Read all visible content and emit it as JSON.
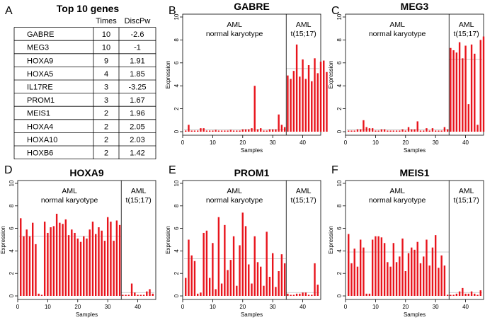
{
  "table": {
    "panel_label": "A",
    "title": "Top 10 genes",
    "headers": [
      "",
      "Times",
      "DiscPw"
    ],
    "rows": [
      [
        "GABRE",
        "10",
        "-2.6"
      ],
      [
        "MEG3",
        "10",
        "-1"
      ],
      [
        "HOXA9",
        "9",
        "1.91"
      ],
      [
        "HOXA5",
        "4",
        "1.85"
      ],
      [
        "IL17RE",
        "3",
        "-3.25"
      ],
      [
        "PROM1",
        "3",
        "1.67"
      ],
      [
        "MEIS1",
        "2",
        "1.96"
      ],
      [
        "HOXA4",
        "2",
        "2.05"
      ],
      [
        "HOXA10",
        "2",
        "2.03"
      ],
      [
        "HOXB6",
        "2",
        "1.42"
      ]
    ]
  },
  "chart_data": [
    {
      "type": "bar",
      "panel_label": "B",
      "title": "GABRE",
      "xlabel": "Samples",
      "ylabel": "Expression",
      "xlim": [
        0,
        46
      ],
      "ylim": [
        0,
        10
      ],
      "xticks": [
        0,
        10,
        20,
        30,
        40
      ],
      "yticks": [
        0,
        2,
        4,
        6,
        8,
        10
      ],
      "divider_x": 34.5,
      "group_labels": {
        "left": [
          "AML",
          "normal karyotype"
        ],
        "right": [
          "AML",
          "t(15;17)"
        ]
      },
      "means": {
        "left": 0.2,
        "right": 5.5
      },
      "values": [
        0.1,
        0.6,
        0.1,
        0.1,
        0.1,
        0.3,
        0.3,
        0.1,
        0.1,
        0.1,
        0.15,
        0.1,
        0.1,
        0.1,
        0.1,
        0.15,
        0.1,
        0.1,
        0.1,
        0.2,
        0.2,
        0.2,
        0.3,
        4.0,
        0.2,
        0.3,
        0.1,
        0.1,
        0.2,
        0.2,
        0.2,
        1.5,
        0.6,
        0.4,
        4.9,
        4.6,
        5.3,
        7.6,
        4.8,
        6.3,
        4.6,
        5.8,
        4.4,
        6.4,
        5.1,
        6.1,
        6.2,
        5.2
      ]
    },
    {
      "type": "bar",
      "panel_label": "C",
      "title": "MEG3",
      "xlabel": "Samples",
      "ylabel": "Expression",
      "xlim": [
        0,
        46
      ],
      "ylim": [
        0,
        10
      ],
      "xticks": [
        0,
        10,
        20,
        30,
        40
      ],
      "yticks": [
        0,
        2,
        4,
        6,
        8,
        10
      ],
      "divider_x": 34.5,
      "group_labels": {
        "left": [
          "AML",
          "normal karyotype"
        ],
        "right": [
          "AML",
          "t(15;17)"
        ]
      },
      "means": {
        "left": 0.2,
        "right": 6.3
      },
      "values": [
        0.1,
        0.1,
        0.1,
        0.2,
        0.2,
        1.0,
        0.4,
        0.3,
        0.3,
        0.1,
        0.1,
        0.2,
        0.2,
        0.1,
        0.1,
        0.1,
        0.1,
        0.1,
        0.2,
        0.1,
        0.4,
        0.2,
        0.2,
        0.9,
        0.1,
        0.1,
        0.3,
        0.1,
        0.3,
        0.1,
        0.1,
        0.1,
        0.4,
        0.2,
        7.3,
        7.1,
        6.9,
        7.8,
        6.4,
        7.5,
        2.4,
        7.6,
        6.8,
        0.6,
        8.0,
        8.3,
        8.6
      ]
    },
    {
      "type": "bar",
      "panel_label": "D",
      "title": "HOXA9",
      "xlabel": "Samples",
      "ylabel": "Expression",
      "xlim": [
        0,
        46
      ],
      "ylim": [
        0,
        10
      ],
      "xticks": [
        0,
        10,
        20,
        30,
        40
      ],
      "yticks": [
        0,
        2,
        4,
        6,
        8,
        10
      ],
      "divider_x": 34.5,
      "group_labels": {
        "left": [
          "AML",
          "normal karyotype"
        ],
        "right": [
          "AML",
          "t(15;17)"
        ]
      },
      "means": {
        "left": 5.3,
        "right": 0.3
      },
      "values": [
        6.9,
        5.3,
        5.9,
        5.3,
        6.5,
        4.6,
        0.2,
        0.1,
        6.6,
        5.6,
        6.1,
        6.2,
        7.3,
        6.5,
        6.4,
        6.8,
        5.4,
        5.9,
        5.6,
        5.1,
        4.8,
        5.3,
        5.1,
        5.9,
        6.6,
        5.5,
        6.1,
        5.8,
        4.9,
        7.0,
        6.6,
        4.9,
        6.7,
        6.3,
        0.1,
        0.1,
        0.1,
        1.1,
        0.3,
        0.1,
        0.1,
        0.1,
        0.4,
        0.6,
        0.2
      ]
    },
    {
      "type": "bar",
      "panel_label": "E",
      "title": "PROM1",
      "xlabel": "Samples",
      "ylabel": "Expression",
      "xlim": [
        0,
        46
      ],
      "ylim": [
        0,
        10
      ],
      "xticks": [
        0,
        10,
        20,
        30,
        40
      ],
      "yticks": [
        0,
        2,
        4,
        6,
        8,
        10
      ],
      "divider_x": 34.5,
      "group_labels": {
        "left": [
          "AML",
          "normal karyotype"
        ],
        "right": [
          "AML",
          "t(15;17)"
        ]
      },
      "means": {
        "left": 3.3,
        "right": 0.3
      },
      "values": [
        1.6,
        5.0,
        3.6,
        3.1,
        0.2,
        0.3,
        5.6,
        5.8,
        1.6,
        4.7,
        0.6,
        7.0,
        1.1,
        6.3,
        2.3,
        3.2,
        5.3,
        0.9,
        4.5,
        7.4,
        6.2,
        2.8,
        1.1,
        5.3,
        3.0,
        2.6,
        0.9,
        5.7,
        1.7,
        3.8,
        0.8,
        2.2,
        3.7,
        2.9,
        0.2,
        0.1,
        0.1,
        0.2,
        0.2,
        0.3,
        0.3,
        0.1,
        0.1,
        2.9,
        1.0
      ]
    },
    {
      "type": "bar",
      "panel_label": "F",
      "title": "MEIS1",
      "xlabel": "Samples",
      "ylabel": "Expression",
      "xlim": [
        0,
        46
      ],
      "ylim": [
        0,
        10
      ],
      "xticks": [
        0,
        10,
        20,
        30,
        40
      ],
      "yticks": [
        0,
        2,
        4,
        6,
        8,
        10
      ],
      "divider_x": 34.5,
      "group_labels": {
        "left": [
          "AML",
          "normal karyotype"
        ],
        "right": [
          "AML",
          "t(15;17)"
        ]
      },
      "means": {
        "left": 3.9,
        "right": 0.3
      },
      "values": [
        5.5,
        2.9,
        4.2,
        2.6,
        5.0,
        4.3,
        0.2,
        0.2,
        5.0,
        5.3,
        5.3,
        5.2,
        4.7,
        3.0,
        2.6,
        4.7,
        3.0,
        3.5,
        5.1,
        2.2,
        3.8,
        4.3,
        4.1,
        4.8,
        2.9,
        3.5,
        5.0,
        2.7,
        4.3,
        5.4,
        2.5,
        3.6,
        2.7,
        0.1,
        0.1,
        0.1,
        0.2,
        0.4,
        0.7,
        0.2,
        0.2,
        0.4,
        0.2,
        0.1,
        0.5
      ]
    }
  ]
}
